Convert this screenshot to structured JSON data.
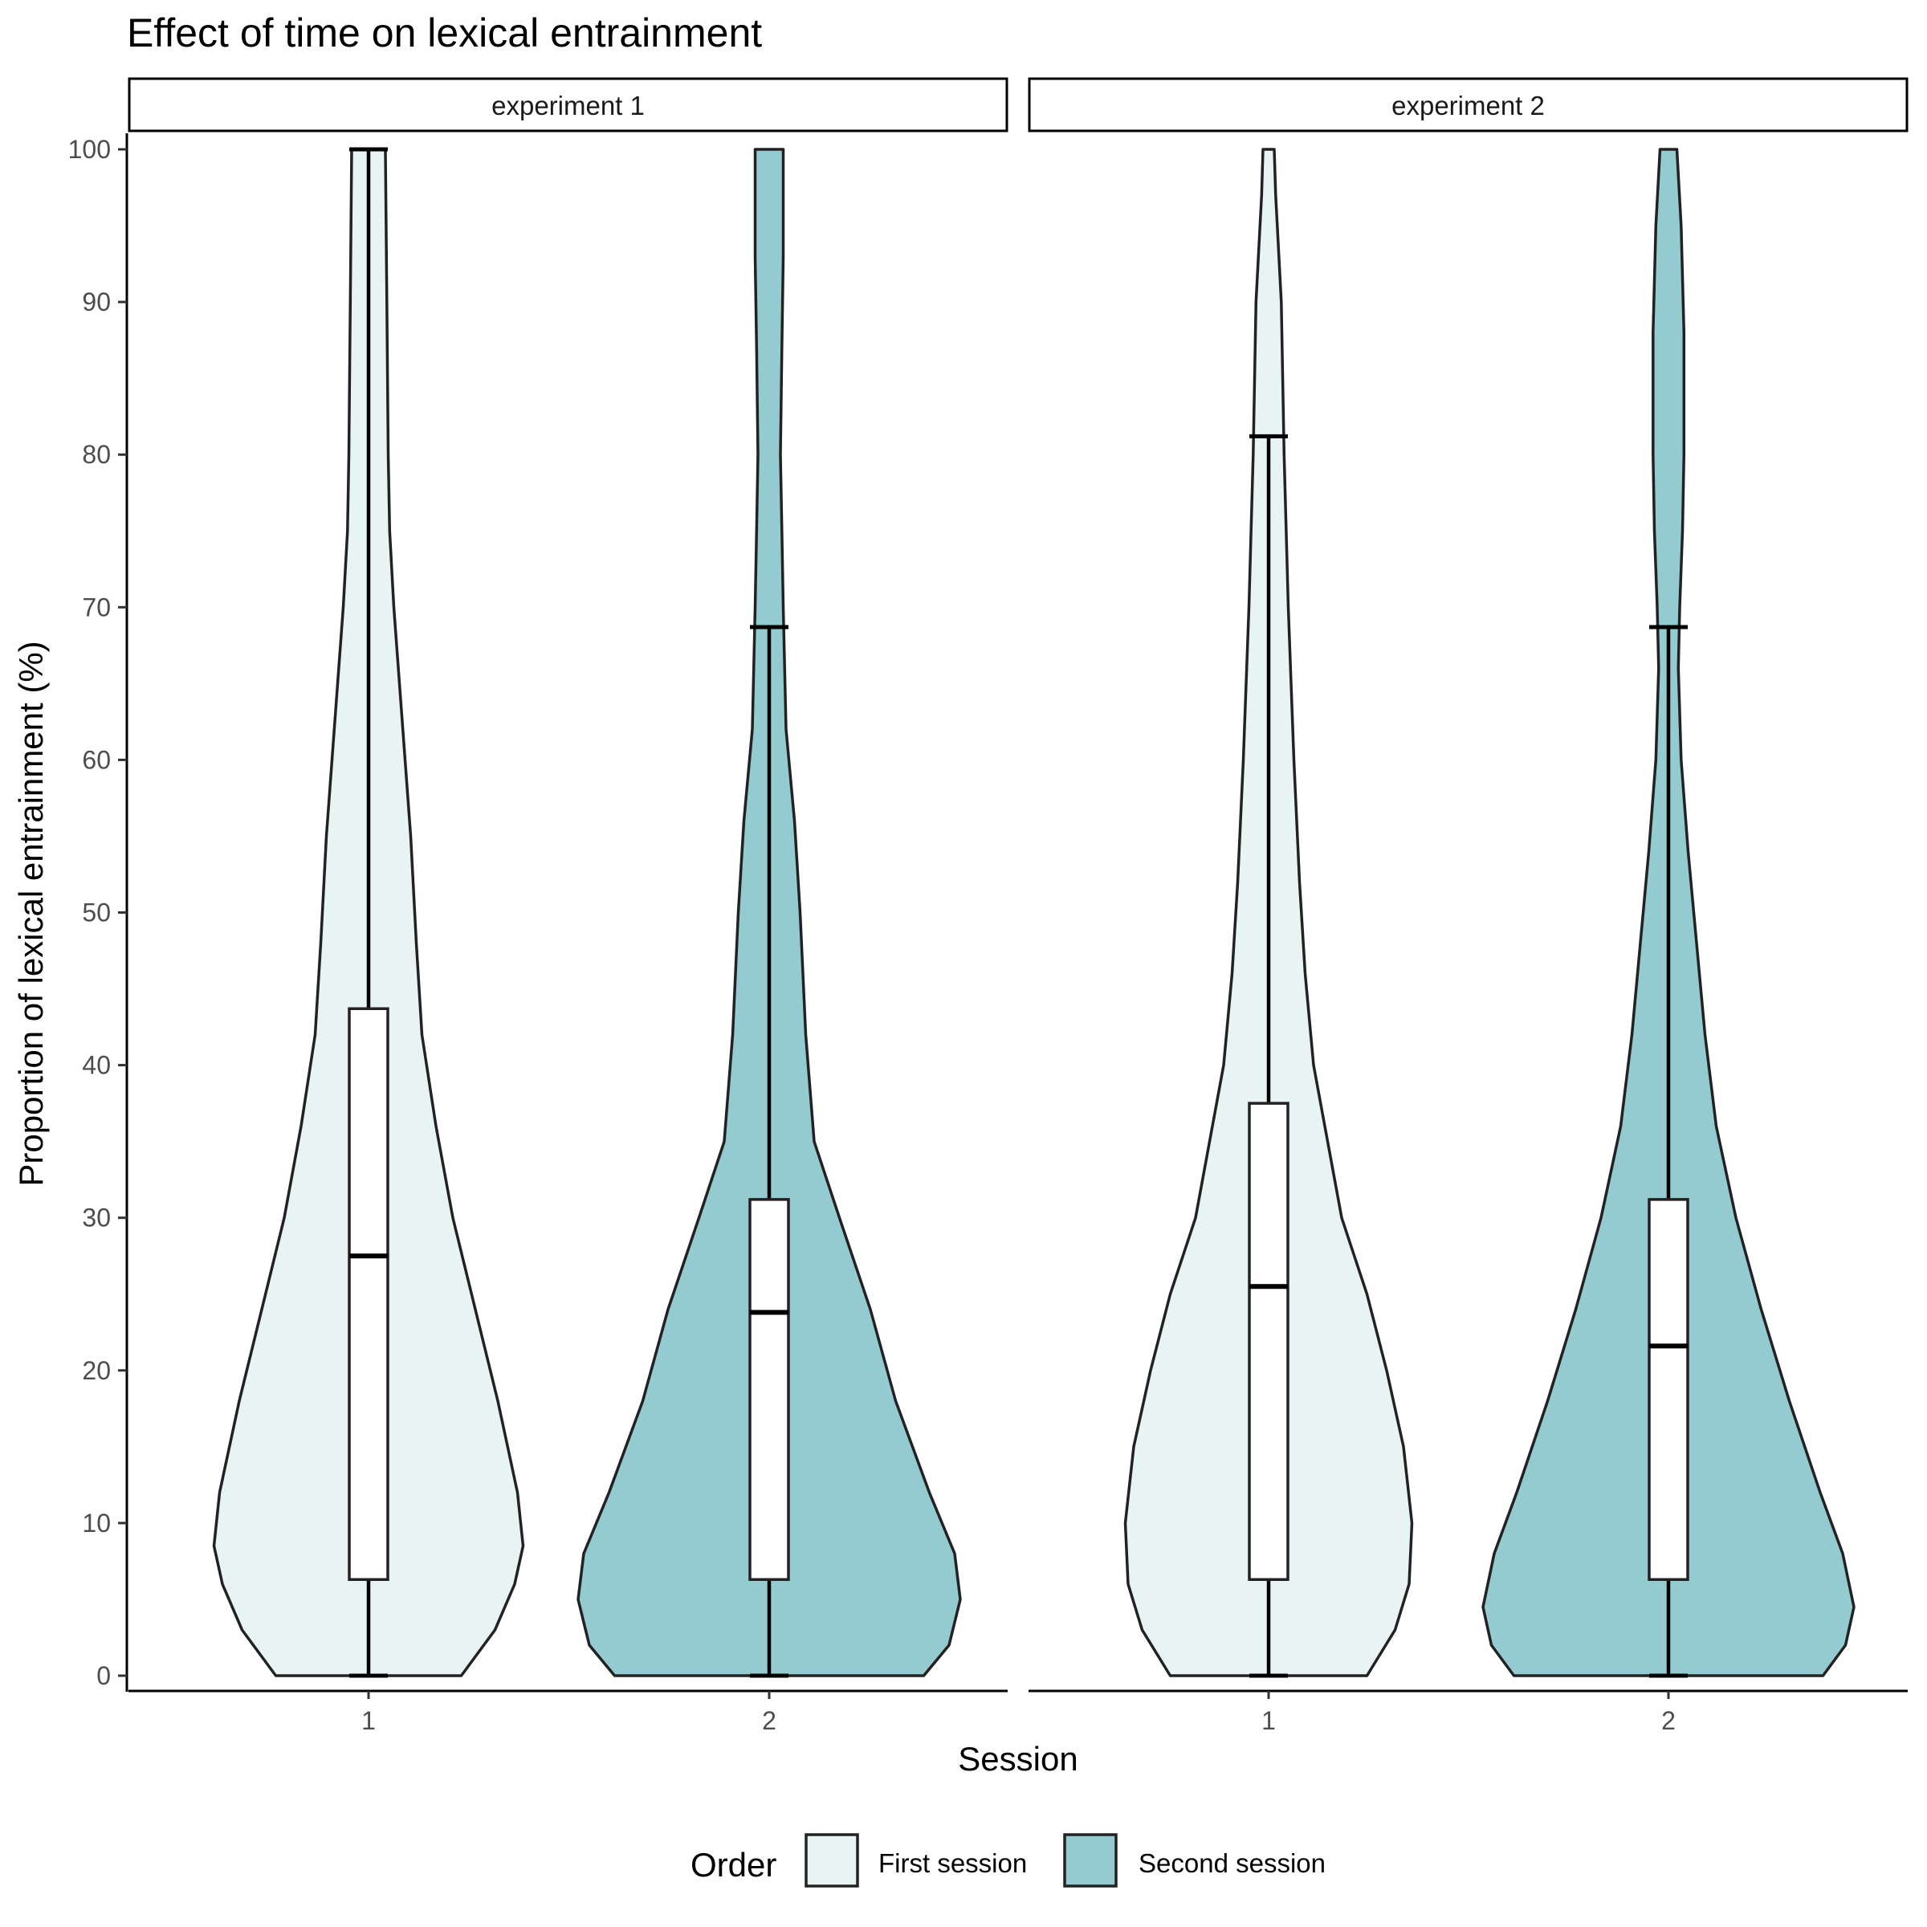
{
  "chart_data": {
    "type": "violin",
    "title": "Effect of time on lexical entrainment",
    "xlabel": "Session",
    "ylabel": "Proportion of lexical entrainment (%)",
    "ylim": [
      0,
      100
    ],
    "yticks": [
      0,
      10,
      20,
      30,
      40,
      50,
      60,
      70,
      80,
      90,
      100
    ],
    "categories": [
      "1",
      "2"
    ],
    "grid": false,
    "legend": {
      "title": "Order",
      "position": "bottom",
      "entries": [
        {
          "label": "First session",
          "color": "#E8F4F4"
        },
        {
          "label": "Second session",
          "color": "#93CBD0"
        }
      ]
    },
    "panels": [
      {
        "label": "experiment 1",
        "groups": [
          {
            "session": "1",
            "order": "First session",
            "box": {
              "min": 0,
              "q1": 6.3,
              "median": 27.5,
              "q3": 43.7,
              "max": 100
            },
            "density": [
              [
                0,
                0.33
              ],
              [
                3,
                0.45
              ],
              [
                6,
                0.52
              ],
              [
                8.5,
                0.55
              ],
              [
                12,
                0.53
              ],
              [
                18,
                0.46
              ],
              [
                24,
                0.38
              ],
              [
                30,
                0.3
              ],
              [
                36,
                0.24
              ],
              [
                42,
                0.19
              ],
              [
                48,
                0.17
              ],
              [
                55,
                0.15
              ],
              [
                60,
                0.13
              ],
              [
                65,
                0.11
              ],
              [
                70,
                0.09
              ],
              [
                75,
                0.075
              ],
              [
                80,
                0.07
              ],
              [
                90,
                0.065
              ],
              [
                100,
                0.06
              ]
            ]
          },
          {
            "session": "2",
            "order": "Second session",
            "box": {
              "min": 0,
              "q1": 6.3,
              "median": 23.8,
              "q3": 31.2,
              "max": 68.7
            },
            "density": [
              [
                0,
                0.55
              ],
              [
                2,
                0.64
              ],
              [
                5,
                0.68
              ],
              [
                8,
                0.66
              ],
              [
                12,
                0.57
              ],
              [
                18,
                0.45
              ],
              [
                24,
                0.36
              ],
              [
                30,
                0.25
              ],
              [
                35,
                0.16
              ],
              [
                42,
                0.13
              ],
              [
                50,
                0.11
              ],
              [
                56,
                0.09
              ],
              [
                62,
                0.06
              ],
              [
                70,
                0.05
              ],
              [
                75,
                0.045
              ],
              [
                80,
                0.04
              ],
              [
                87,
                0.045
              ],
              [
                93,
                0.05
              ],
              [
                97,
                0.05
              ],
              [
                100,
                0.05
              ]
            ]
          }
        ]
      },
      {
        "label": "experiment 2",
        "groups": [
          {
            "session": "1",
            "order": "First session",
            "box": {
              "min": 0,
              "q1": 6.3,
              "median": 25.5,
              "q3": 37.5,
              "max": 81.2
            },
            "density": [
              [
                0,
                0.35
              ],
              [
                3,
                0.45
              ],
              [
                6,
                0.5
              ],
              [
                10,
                0.51
              ],
              [
                15,
                0.48
              ],
              [
                20,
                0.42
              ],
              [
                25,
                0.35
              ],
              [
                30,
                0.26
              ],
              [
                36,
                0.2
              ],
              [
                40,
                0.16
              ],
              [
                46,
                0.13
              ],
              [
                52,
                0.11
              ],
              [
                60,
                0.09
              ],
              [
                70,
                0.07
              ],
              [
                80,
                0.055
              ],
              [
                90,
                0.045
              ],
              [
                97,
                0.025
              ],
              [
                100,
                0.02
              ]
            ]
          },
          {
            "session": "2",
            "order": "Second session",
            "box": {
              "min": 0,
              "q1": 6.3,
              "median": 21.6,
              "q3": 31.2,
              "max": 68.7
            },
            "density": [
              [
                0,
                0.55
              ],
              [
                2,
                0.63
              ],
              [
                4.5,
                0.66
              ],
              [
                8,
                0.62
              ],
              [
                12,
                0.54
              ],
              [
                18,
                0.43
              ],
              [
                24,
                0.33
              ],
              [
                30,
                0.24
              ],
              [
                36,
                0.17
              ],
              [
                42,
                0.13
              ],
              [
                48,
                0.1
              ],
              [
                54,
                0.07
              ],
              [
                60,
                0.045
              ],
              [
                66,
                0.035
              ],
              [
                70,
                0.04
              ],
              [
                75,
                0.05
              ],
              [
                80,
                0.055
              ],
              [
                88,
                0.055
              ],
              [
                95,
                0.045
              ],
              [
                100,
                0.03
              ]
            ]
          }
        ]
      }
    ]
  }
}
